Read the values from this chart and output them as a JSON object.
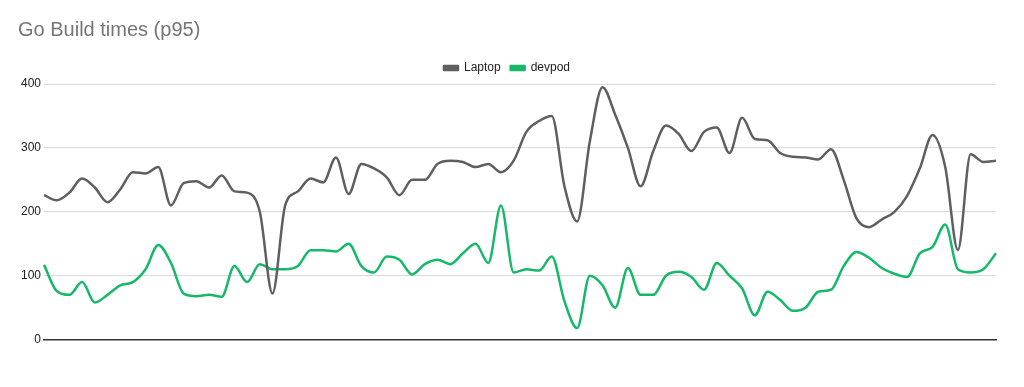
{
  "chart_data": {
    "type": "line",
    "title": "Go Build times (p95)",
    "categories": [
      null,
      null,
      null,
      null,
      null,
      null,
      null,
      null,
      null,
      null,
      null,
      null,
      null,
      null,
      null,
      null,
      null,
      null,
      null,
      null,
      null,
      null,
      null,
      null,
      null,
      null,
      null,
      null,
      null,
      null,
      null,
      null,
      null,
      null,
      null,
      null,
      null,
      null,
      null,
      null,
      null,
      null,
      null,
      null,
      null,
      null,
      null,
      null,
      null,
      null,
      null,
      null,
      null,
      null,
      null,
      null,
      null,
      null,
      null,
      null,
      null,
      null,
      null,
      null,
      null,
      null,
      null,
      null,
      null,
      null,
      null,
      null,
      null,
      null,
      null,
      null
    ],
    "series": [
      {
        "name": "Laptop",
        "color": "#5f5f5f",
        "values": [
          226,
          218,
          230,
          252,
          238,
          215,
          235,
          262,
          260,
          270,
          210,
          245,
          248,
          238,
          257,
          232,
          230,
          200,
          72,
          210,
          232,
          252,
          246,
          285,
          228,
          275,
          268,
          254,
          226,
          250,
          250,
          275,
          280,
          278,
          270,
          275,
          262,
          280,
          325,
          342,
          350,
          240,
          185,
          310,
          395,
          352,
          300,
          240,
          295,
          335,
          322,
          295,
          325,
          332,
          292,
          347,
          314,
          312,
          292,
          286,
          285,
          282,
          298,
          250,
          190,
          176,
          188,
          200,
          225,
          268,
          320,
          270,
          140,
          290,
          278,
          280
        ]
      },
      {
        "name": "devpod",
        "color": "#16b86a",
        "values": [
          117,
          76,
          70,
          90,
          58,
          70,
          85,
          90,
          110,
          148,
          120,
          72,
          68,
          70,
          67,
          115,
          90,
          118,
          110,
          110,
          115,
          140,
          140,
          138,
          150,
          115,
          105,
          130,
          125,
          102,
          118,
          125,
          118,
          135,
          150,
          120,
          210,
          105,
          110,
          108,
          130,
          60,
          18,
          100,
          85,
          50,
          112,
          70,
          70,
          100,
          106,
          98,
          78,
          120,
          100,
          80,
          38,
          75,
          62,
          45,
          50,
          75,
          78,
          115,
          137,
          128,
          112,
          103,
          98,
          135,
          145,
          180,
          110,
          105,
          110,
          135
        ]
      }
    ],
    "ylim": [
      0,
      400
    ],
    "yticks": [
      0,
      100,
      200,
      300,
      400
    ],
    "grid": "y",
    "legend": "top",
    "marker": "none",
    "line_style": "solid"
  }
}
